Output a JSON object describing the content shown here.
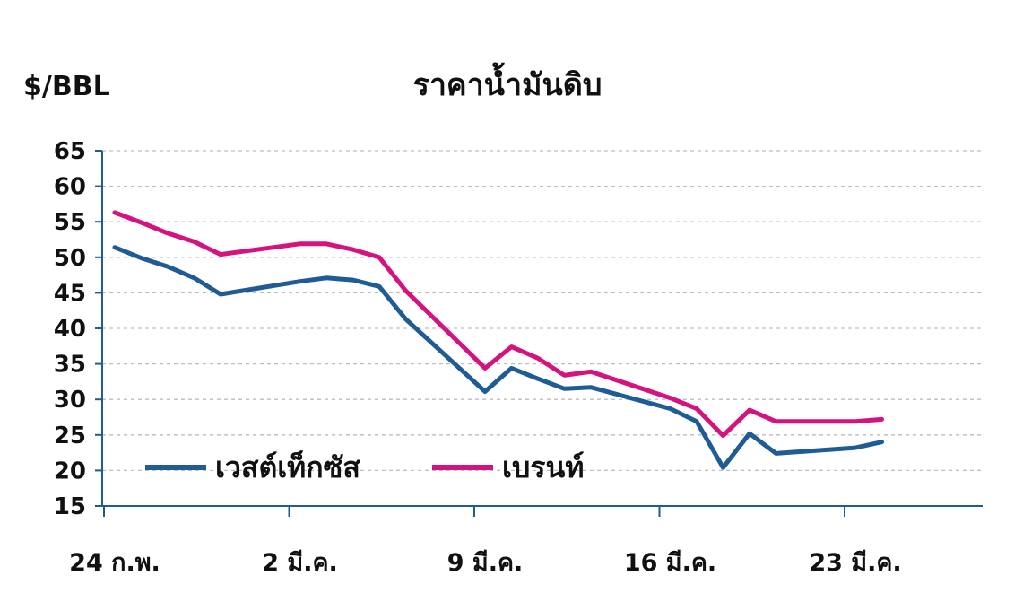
{
  "chart_data": {
    "type": "line",
    "title": "ราคาน้ำมันดิบ",
    "ylabel": "$/BBL",
    "xlabel": "",
    "ylim": [
      15,
      65
    ],
    "yticks": [
      65,
      60,
      55,
      50,
      45,
      40,
      35,
      30,
      25,
      20,
      15
    ],
    "xticks": [
      "24 ก.พ.",
      "2 มี.ค.",
      "9 มี.ค.",
      "16 มี.ค.",
      "23 มี.ค."
    ],
    "x_range": [
      "2020-02-24",
      "2020-03-29"
    ],
    "grid": true,
    "legend_position": "bottom-left",
    "series": [
      {
        "name": "เวสต์เท็กซัส",
        "color": "#1f5b95",
        "points": [
          {
            "x": "2020-02-24",
            "y": 51.4
          },
          {
            "x": "2020-02-25",
            "y": 49.9
          },
          {
            "x": "2020-02-26",
            "y": 48.7
          },
          {
            "x": "2020-02-27",
            "y": 47.1
          },
          {
            "x": "2020-02-28",
            "y": 44.8
          },
          {
            "x": "2020-03-02",
            "y": 46.6
          },
          {
            "x": "2020-03-03",
            "y": 47.1
          },
          {
            "x": "2020-03-04",
            "y": 46.8
          },
          {
            "x": "2020-03-05",
            "y": 45.9
          },
          {
            "x": "2020-03-06",
            "y": 41.3
          },
          {
            "x": "2020-03-09",
            "y": 31.1
          },
          {
            "x": "2020-03-10",
            "y": 34.4
          },
          {
            "x": "2020-03-11",
            "y": 32.9
          },
          {
            "x": "2020-03-12",
            "y": 31.5
          },
          {
            "x": "2020-03-13",
            "y": 31.7
          },
          {
            "x": "2020-03-16",
            "y": 28.7
          },
          {
            "x": "2020-03-17",
            "y": 26.9
          },
          {
            "x": "2020-03-18",
            "y": 20.4
          },
          {
            "x": "2020-03-19",
            "y": 25.2
          },
          {
            "x": "2020-03-20",
            "y": 22.4
          },
          {
            "x": "2020-03-23",
            "y": 23.2
          },
          {
            "x": "2020-03-24",
            "y": 24.0
          }
        ]
      },
      {
        "name": "เบรนท์",
        "color": "#d4137f",
        "points": [
          {
            "x": "2020-02-24",
            "y": 56.3
          },
          {
            "x": "2020-02-25",
            "y": 54.9
          },
          {
            "x": "2020-02-26",
            "y": 53.4
          },
          {
            "x": "2020-02-27",
            "y": 52.2
          },
          {
            "x": "2020-02-28",
            "y": 50.4
          },
          {
            "x": "2020-03-02",
            "y": 51.9
          },
          {
            "x": "2020-03-03",
            "y": 51.9
          },
          {
            "x": "2020-03-04",
            "y": 51.1
          },
          {
            "x": "2020-03-05",
            "y": 50.0
          },
          {
            "x": "2020-03-06",
            "y": 45.3
          },
          {
            "x": "2020-03-09",
            "y": 34.4
          },
          {
            "x": "2020-03-10",
            "y": 37.4
          },
          {
            "x": "2020-03-11",
            "y": 35.8
          },
          {
            "x": "2020-03-12",
            "y": 33.4
          },
          {
            "x": "2020-03-13",
            "y": 33.9
          },
          {
            "x": "2020-03-16",
            "y": 30.2
          },
          {
            "x": "2020-03-17",
            "y": 28.7
          },
          {
            "x": "2020-03-18",
            "y": 24.9
          },
          {
            "x": "2020-03-19",
            "y": 28.5
          },
          {
            "x": "2020-03-20",
            "y": 26.9
          },
          {
            "x": "2020-03-23",
            "y": 26.9
          },
          {
            "x": "2020-03-24",
            "y": 27.2
          }
        ]
      }
    ]
  }
}
